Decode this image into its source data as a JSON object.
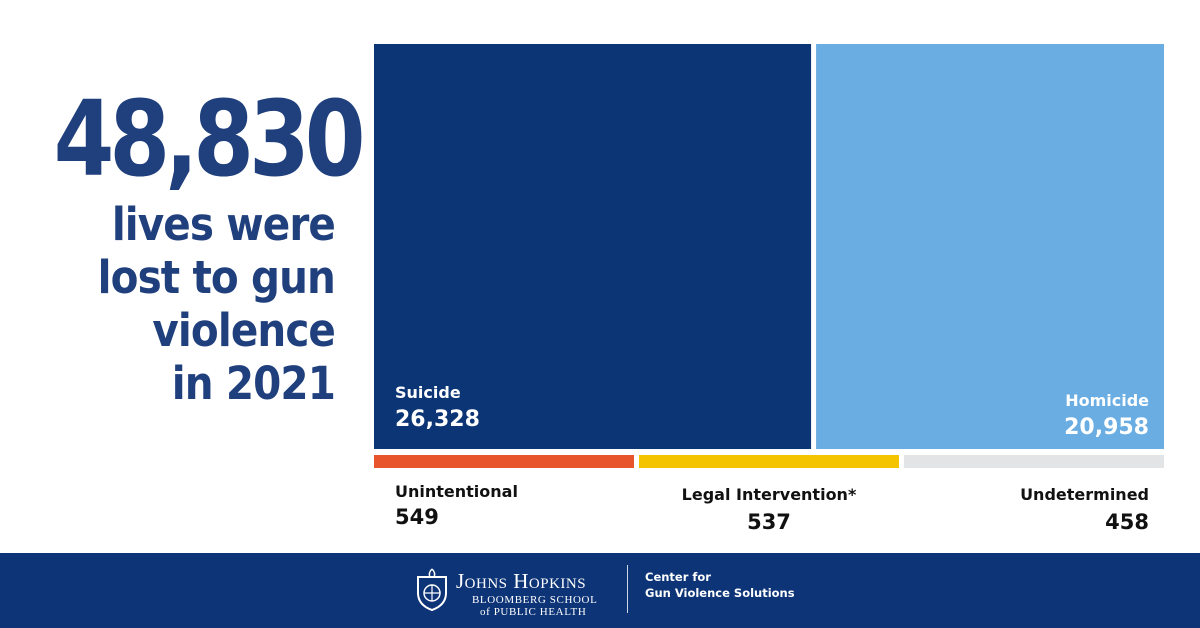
{
  "headline": {
    "number": "48,830",
    "lines": [
      "lives were",
      "lost to gun",
      "violence",
      "in 2021"
    ]
  },
  "chart_data": {
    "type": "treemap",
    "title": "",
    "categories": [
      "Suicide",
      "Homicide",
      "Unintentional",
      "Legal Intervention*",
      "Undetermined"
    ],
    "values": [
      26328,
      20958,
      549,
      537,
      458
    ],
    "value_labels": [
      "26,328",
      "20,958",
      "549",
      "537",
      "458"
    ],
    "colors": [
      "#0c3575",
      "#6aade2",
      "#e8552c",
      "#f5c400",
      "#e3e4e6"
    ]
  },
  "footer": {
    "university": "Johns Hopkins",
    "school_line1": "BLOOMBERG SCHOOL",
    "school_line2": "of PUBLIC HEALTH",
    "center_line1": "Center for",
    "center_line2": "Gun Violence Solutions",
    "background": "#0d3476",
    "logo_icon": "university-shield-icon"
  }
}
